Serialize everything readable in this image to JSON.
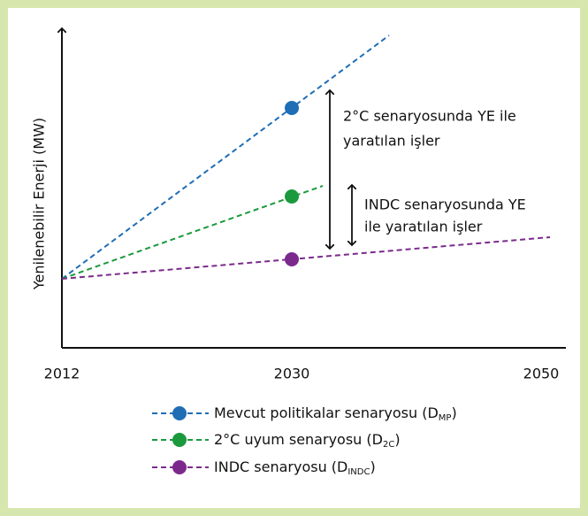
{
  "axis": {
    "y_label": "Yenilenebilir Enerji (MW)",
    "x_labels": [
      "2012",
      "2030",
      "2050"
    ]
  },
  "annotations": [
    {
      "lines": [
        "2°C senaryosunda YE ile",
        "yaratılan işler"
      ]
    },
    {
      "lines": [
        "INDC senaryosunda YE",
        "ile yaratılan işler"
      ]
    }
  ],
  "legend": [
    {
      "text": "Mevcut politikalar senaryosu (D",
      "sub": "MP",
      "end": ")"
    },
    {
      "text": "2°C uyum senaryosu (D",
      "sub": "2C",
      "end": ")"
    },
    {
      "text": "INDC senaryosu (D",
      "sub": "INDC",
      "end": ")"
    }
  ]
}
